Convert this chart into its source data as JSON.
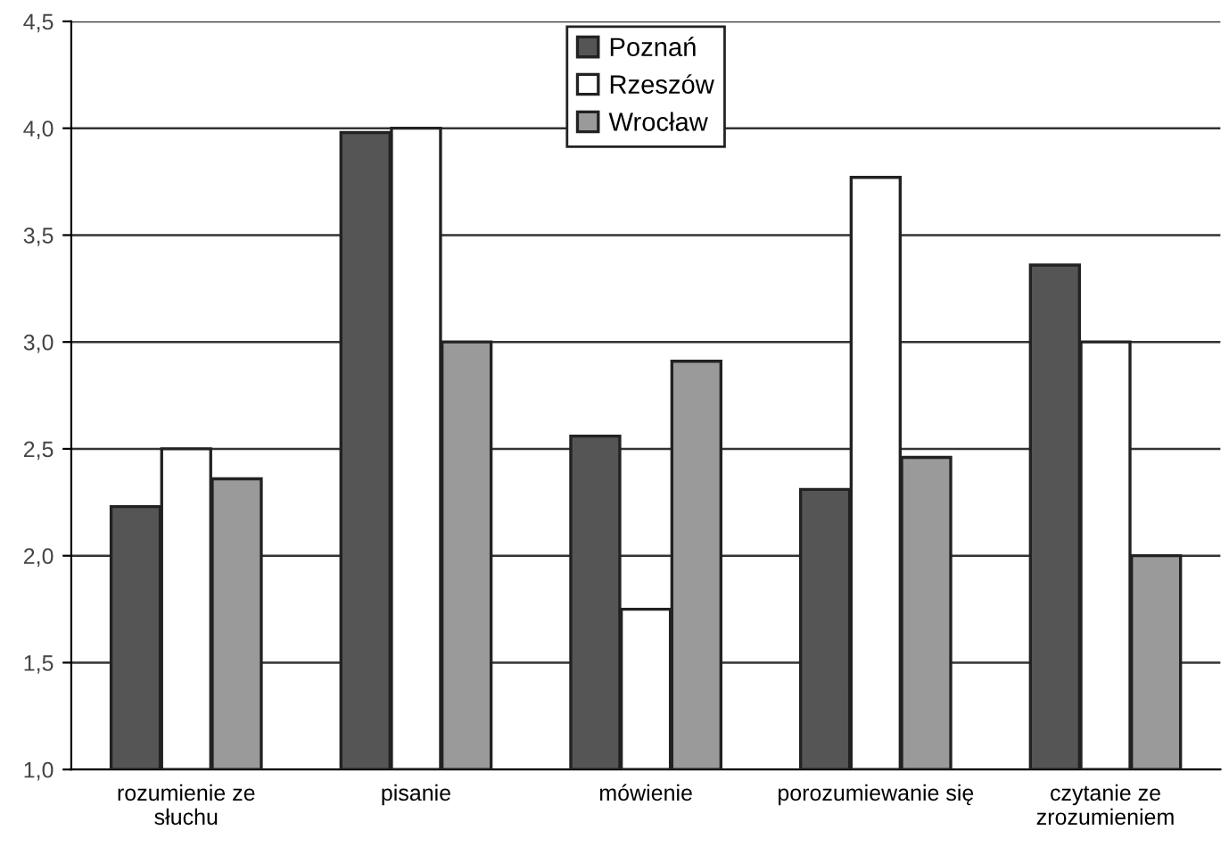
{
  "chart_data": {
    "type": "bar",
    "categories": [
      "rozumienie ze\nsłuchu",
      "pisanie",
      "mówienie",
      "porozumiewanie się",
      "czytanie ze\nzrozumieniem"
    ],
    "series": [
      {
        "name": "Poznań",
        "color": "#555555",
        "values": [
          2.23,
          3.98,
          2.56,
          2.31,
          3.36
        ]
      },
      {
        "name": "Rzeszów",
        "color": "#ffffff",
        "values": [
          2.5,
          4.0,
          1.75,
          3.77,
          3.0
        ]
      },
      {
        "name": "Wrocław",
        "color": "#9a9a9a",
        "values": [
          2.36,
          3.0,
          2.91,
          2.46,
          2.0
        ]
      }
    ],
    "ylim": [
      1.0,
      4.5
    ],
    "yticks": [
      {
        "value": 1.0,
        "label": "1,0"
      },
      {
        "value": 1.5,
        "label": "1,5"
      },
      {
        "value": 2.0,
        "label": "2,0"
      },
      {
        "value": 2.5,
        "label": "2,5"
      },
      {
        "value": 3.0,
        "label": "3,0"
      },
      {
        "value": 3.5,
        "label": "3,5"
      },
      {
        "value": 4.0,
        "label": "4,0"
      },
      {
        "value": 4.5,
        "label": "4,5"
      }
    ],
    "grid": "y",
    "legend": "top"
  }
}
